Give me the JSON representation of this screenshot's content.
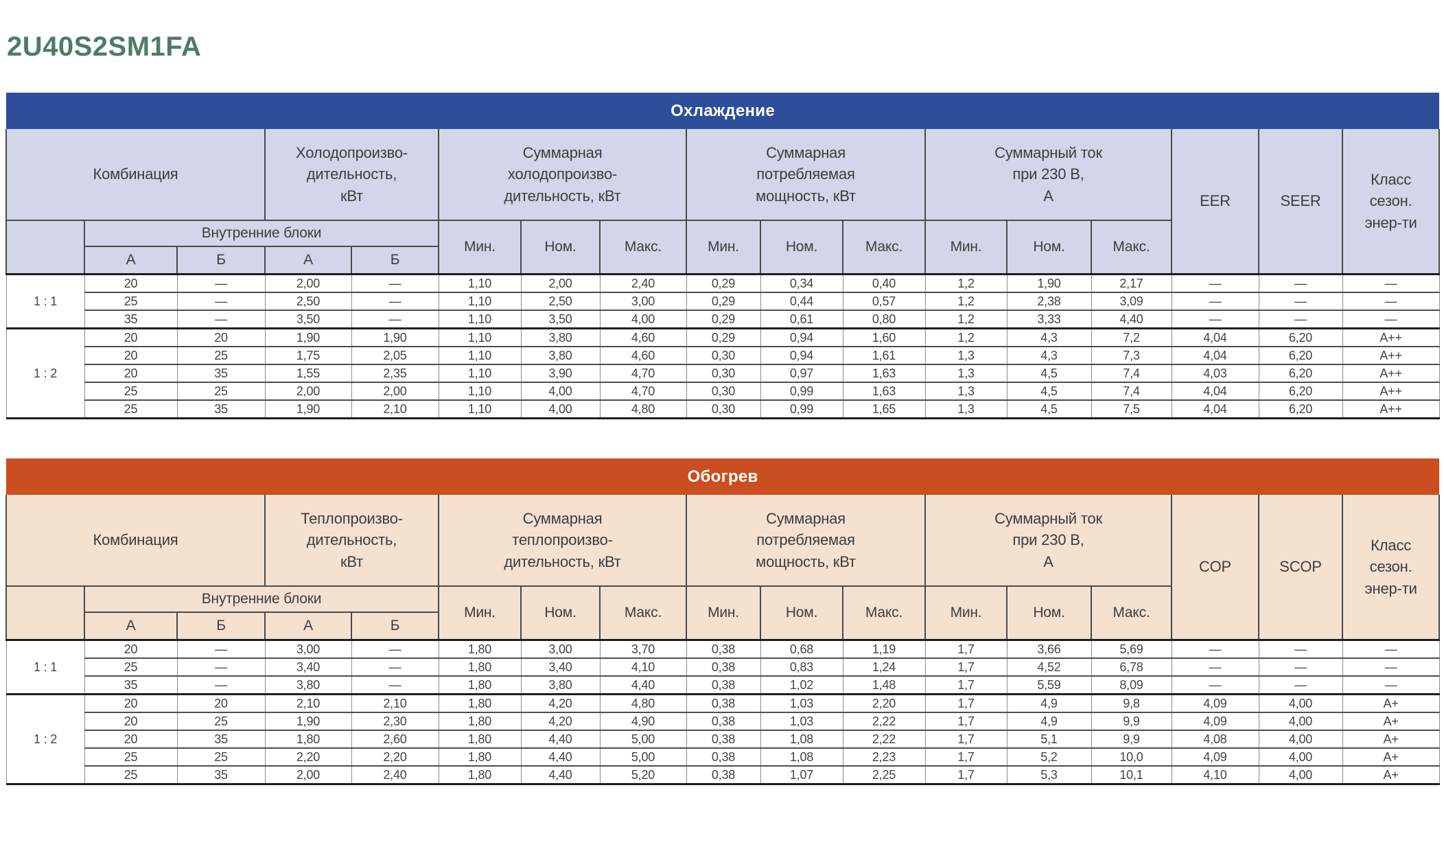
{
  "title": "2U40S2SM1FA",
  "title_color": "#4d7c64",
  "tables": [
    {
      "name": "cooling",
      "banner": "Охлаждение",
      "theme": {
        "banner_bg": "#2e4e99",
        "header_bg": "#d3d6e9"
      },
      "headers": {
        "combination": "Комбинация",
        "capacity": "Холодопроизво-\nдительность,\nкВт",
        "total_capacity": "Суммарная\nхолодопроизво-\nдительность, кВт",
        "total_power": "Суммарная\nпотребляемая\nмощность, кВт",
        "total_current": "Суммарный ток\nпри 230 В,\nА",
        "efficiency": "EER",
        "seasonal_efficiency": "SEER",
        "energy_class": "Класс\nсезон.\nэнер-ти",
        "indoor_units": "Внутренние блоки",
        "unit_a": "А",
        "unit_b": "Б",
        "min": "Мин.",
        "nom": "Ном.",
        "max": "Макс."
      },
      "row_groups": [
        {
          "ratio": "1 : 1",
          "rows": [
            [
              "20",
              "—",
              "2,00",
              "—",
              "1,10",
              "2,00",
              "2,40",
              "0,29",
              "0,34",
              "0,40",
              "1,2",
              "1,90",
              "2,17",
              "—",
              "—",
              "—"
            ],
            [
              "25",
              "—",
              "2,50",
              "—",
              "1,10",
              "2,50",
              "3,00",
              "0,29",
              "0,44",
              "0,57",
              "1,2",
              "2,38",
              "3,09",
              "—",
              "—",
              "—"
            ],
            [
              "35",
              "—",
              "3,50",
              "—",
              "1,10",
              "3,50",
              "4,00",
              "0,29",
              "0,61",
              "0,80",
              "1,2",
              "3,33",
              "4,40",
              "—",
              "—",
              "—"
            ]
          ]
        },
        {
          "ratio": "1 : 2",
          "rows": [
            [
              "20",
              "20",
              "1,90",
              "1,90",
              "1,10",
              "3,80",
              "4,60",
              "0,29",
              "0,94",
              "1,60",
              "1,2",
              "4,3",
              "7,2",
              "4,04",
              "6,20",
              "A++"
            ],
            [
              "20",
              "25",
              "1,75",
              "2,05",
              "1,10",
              "3,80",
              "4,60",
              "0,30",
              "0,94",
              "1,61",
              "1,3",
              "4,3",
              "7,3",
              "4,04",
              "6,20",
              "A++"
            ],
            [
              "20",
              "35",
              "1,55",
              "2,35",
              "1,10",
              "3,90",
              "4,70",
              "0,30",
              "0,97",
              "1,63",
              "1,3",
              "4,5",
              "7,4",
              "4,03",
              "6,20",
              "A++"
            ],
            [
              "25",
              "25",
              "2,00",
              "2,00",
              "1,10",
              "4,00",
              "4,70",
              "0,30",
              "0,99",
              "1,63",
              "1,3",
              "4,5",
              "7,4",
              "4,04",
              "6,20",
              "A++"
            ],
            [
              "25",
              "35",
              "1,90",
              "2,10",
              "1,10",
              "4,00",
              "4,80",
              "0,30",
              "0,99",
              "1,65",
              "1,3",
              "4,5",
              "7,5",
              "4,04",
              "6,20",
              "A++"
            ]
          ]
        }
      ]
    },
    {
      "name": "heating",
      "banner": "Обогрев",
      "theme": {
        "banner_bg": "#ca4e1f",
        "header_bg": "#f4e1d0"
      },
      "headers": {
        "combination": "Комбинация",
        "capacity": "Теплопроизво-\nдительность,\nкВт",
        "total_capacity": "Суммарная\nтеплопроизво-\nдительность, кВт",
        "total_power": "Суммарная\nпотребляемая\nмощность, кВт",
        "total_current": "Суммарный ток\nпри 230 В,\nА",
        "efficiency": "COP",
        "seasonal_efficiency": "SCOP",
        "energy_class": "Класс\nсезон.\nэнер-ти",
        "indoor_units": "Внутренние блоки",
        "unit_a": "А",
        "unit_b": "Б",
        "min": "Мин.",
        "nom": "Ном.",
        "max": "Макс."
      },
      "row_groups": [
        {
          "ratio": "1 : 1",
          "rows": [
            [
              "20",
              "—",
              "3,00",
              "—",
              "1,80",
              "3,00",
              "3,70",
              "0,38",
              "0,68",
              "1,19",
              "1,7",
              "3,66",
              "5,69",
              "—",
              "—",
              "—"
            ],
            [
              "25",
              "—",
              "3,40",
              "—",
              "1,80",
              "3,40",
              "4,10",
              "0,38",
              "0,83",
              "1,24",
              "1,7",
              "4,52",
              "6,78",
              "—",
              "—",
              "—"
            ],
            [
              "35",
              "—",
              "3,80",
              "—",
              "1,80",
              "3,80",
              "4,40",
              "0,38",
              "1,02",
              "1,48",
              "1,7",
              "5,59",
              "8,09",
              "—",
              "—",
              "—"
            ]
          ]
        },
        {
          "ratio": "1 : 2",
          "rows": [
            [
              "20",
              "20",
              "2,10",
              "2,10",
              "1,80",
              "4,20",
              "4,80",
              "0,38",
              "1,03",
              "2,20",
              "1,7",
              "4,9",
              "9,8",
              "4,09",
              "4,00",
              "A+"
            ],
            [
              "20",
              "25",
              "1,90",
              "2,30",
              "1,80",
              "4,20",
              "4,90",
              "0,38",
              "1,03",
              "2,22",
              "1,7",
              "4,9",
              "9,9",
              "4,09",
              "4,00",
              "A+"
            ],
            [
              "20",
              "35",
              "1,80",
              "2,60",
              "1,80",
              "4,40",
              "5,00",
              "0,38",
              "1,08",
              "2,22",
              "1,7",
              "5,1",
              "9,9",
              "4,08",
              "4,00",
              "A+"
            ],
            [
              "25",
              "25",
              "2,20",
              "2,20",
              "1,80",
              "4,40",
              "5,00",
              "0,38",
              "1,08",
              "2,23",
              "1,7",
              "5,2",
              "10,0",
              "4,09",
              "4,00",
              "A+"
            ],
            [
              "25",
              "35",
              "2,00",
              "2,40",
              "1,80",
              "4,40",
              "5,20",
              "0,38",
              "1,07",
              "2,25",
              "1,7",
              "5,3",
              "10,1",
              "4,10",
              "4,00",
              "A+"
            ]
          ]
        }
      ]
    }
  ]
}
